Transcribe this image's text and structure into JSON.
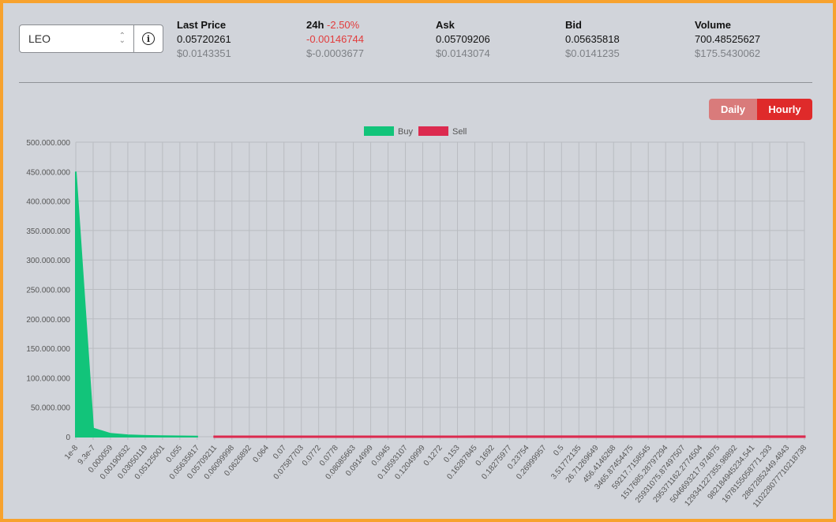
{
  "selector": {
    "value": "LEO"
  },
  "stats": {
    "last_price": {
      "label": "Last Price",
      "value": "0.05720261",
      "usd": "$0.0143351"
    },
    "change_24h": {
      "label": "24h",
      "pct": "-2.50%",
      "value": "-0.00146744",
      "usd": "$-0.0003677"
    },
    "ask": {
      "label": "Ask",
      "value": "0.05709206",
      "usd": "$0.0143074"
    },
    "bid": {
      "label": "Bid",
      "value": "0.05635818",
      "usd": "$0.0141235"
    },
    "volume": {
      "label": "Volume",
      "value": "700.48525627",
      "usd": "$175.5430062"
    }
  },
  "toggle": {
    "daily": "Daily",
    "hourly": "Hourly",
    "active": "hourly"
  },
  "colors": {
    "buy": "#12c47a",
    "sell": "#dc2a4f",
    "accent": "#df2a2a"
  },
  "chart_data": {
    "type": "area",
    "title": "",
    "legend": [
      "Buy",
      "Sell"
    ],
    "legend_position": "top-center",
    "y_ticks": [
      "500.000.000",
      "450.000.000",
      "400.000.000",
      "350.000.000",
      "300.000.000",
      "250.000.000",
      "200.000.000",
      "150.000.000",
      "100.000.000",
      "50.000.000",
      "0"
    ],
    "ylim": [
      0,
      500000000
    ],
    "x": [
      "1e-8",
      "9.3e-7",
      "0.000059",
      "0.00190632",
      "0.03050119",
      "0.05125001",
      "0.055",
      "0.05635817",
      "0.05709211",
      "0.06099998",
      "0.0626892",
      "0.064",
      "0.07",
      "0.07587703",
      "0.0772",
      "0.0778",
      "0.08085663",
      "0.0914999",
      "0.0945",
      "0.10593107",
      "0.12049999",
      "0.1272",
      "0.153",
      "0.16287845",
      "0.1692",
      "0.18275977",
      "0.23754",
      "0.26999957",
      "0.5",
      "3.51772135",
      "26.71269649",
      "456.4146268",
      "3465.87454475",
      "59217.7158545",
      "1517685.28797294",
      "25931075.87497507",
      "295371162.2774504",
      "5046693217.974875",
      "129341227355.98892",
      "982184945234.541",
      "1678155058771.293",
      "28672852449.4843",
      "110228077710218738"
    ],
    "series": [
      {
        "name": "Buy",
        "values": [
          450000000,
          14000000,
          5000000,
          2500000,
          1500000,
          1000000,
          600000,
          300000,
          null,
          null,
          null,
          null,
          null,
          null,
          null,
          null,
          null,
          null,
          null,
          null,
          null,
          null,
          null,
          null,
          null,
          null,
          null,
          null,
          null,
          null,
          null,
          null,
          null,
          null,
          null,
          null,
          null,
          null,
          null,
          null,
          null,
          null,
          null
        ]
      },
      {
        "name": "Sell",
        "values": [
          null,
          null,
          null,
          null,
          null,
          null,
          null,
          null,
          10000,
          15000,
          20000,
          25000,
          30000,
          35000,
          40000,
          45000,
          50000,
          55000,
          60000,
          65000,
          70000,
          75000,
          80000,
          85000,
          90000,
          95000,
          100000,
          105000,
          110000,
          115000,
          120000,
          125000,
          130000,
          135000,
          140000,
          145000,
          150000,
          155000,
          160000,
          165000,
          170000,
          175000,
          180000
        ]
      }
    ]
  }
}
